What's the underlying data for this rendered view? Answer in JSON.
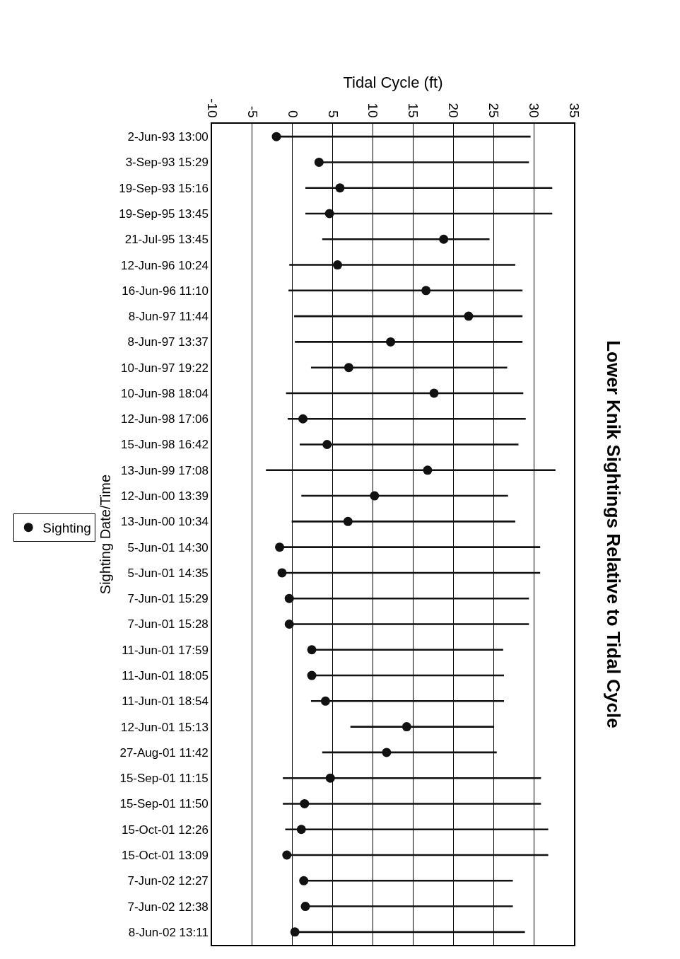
{
  "chart_data": {
    "type": "bar",
    "title": "Lower Knik Sightings Relative to Tidal Cycle",
    "xlabel": "Tidal Cycle (ft)",
    "ylabel": "Sighting Date/Time",
    "orientation": "horizontal",
    "categories": [
      "2-Jun-93 13:00",
      "3-Sep-93 15:29",
      "19-Sep-93 15:16",
      "19-Sep-95 13:45",
      "21-Jul-95 13:45",
      "12-Jun-96 10:24",
      "16-Jun-96 11:10",
      "8-Jun-97 11:44",
      "8-Jun-97 13:37",
      "10-Jun-97 19:22",
      "10-Jun-98 18:04",
      "12-Jun-98 17:06",
      "15-Jun-98 16:42",
      "13-Jun-99 17:08",
      "12-Jun-00 13:39",
      "13-Jun-00 10:34",
      "5-Jun-01 14:30",
      "5-Jun-01 14:35",
      "7-Jun-01 15:29",
      "7-Jun-01 15:28",
      "11-Jun-01 17:59",
      "11-Jun-01 18:05",
      "11-Jun-01 18:54",
      "12-Jun-01 15:13",
      "27-Aug-01 11:42",
      "15-Sep-01 11:15",
      "15-Sep-01 11:50",
      "15-Oct-01 12:26",
      "15-Oct-01 13:09",
      "7-Jun-02 12:27",
      "7-Jun-02 12:38",
      "8-Jun-02 13:11"
    ],
    "series": [
      {
        "color": "#111111",
        "base": [
          -2.0,
          3.3,
          1.6,
          1.6,
          3.7,
          -0.4,
          -0.5,
          0.2,
          0.3,
          2.3,
          -0.8,
          -0.6,
          0.9,
          -3.3,
          1.1,
          -0.1,
          -1.6,
          -1.3,
          -0.4,
          -0.4,
          2.4,
          2.4,
          2.3,
          7.2,
          3.7,
          -1.2,
          -1.2,
          -0.9,
          -0.7,
          1.4,
          1.6,
          0.3
        ],
        "values": [
          31.6,
          26.1,
          30.7,
          30.7,
          20.8,
          28.1,
          29.1,
          28.4,
          28.3,
          24.4,
          29.5,
          29.6,
          27.2,
          36.0,
          25.7,
          27.8,
          32.4,
          32.1,
          29.8,
          29.8,
          23.8,
          23.9,
          24.0,
          17.8,
          21.7,
          32.1,
          32.1,
          32.7,
          32.5,
          26.0,
          25.8,
          28.6
        ]
      },
      {
        "type": "scatter",
        "name": "Sighting",
        "color": "#111111",
        "marker": "circle",
        "values": [
          -2.0,
          3.3,
          5.9,
          4.6,
          18.8,
          5.6,
          16.6,
          21.9,
          12.2,
          7.0,
          17.6,
          1.3,
          4.3,
          16.8,
          10.2,
          6.9,
          -1.6,
          -1.3,
          -0.4,
          -0.4,
          2.4,
          2.4,
          4.1,
          14.2,
          11.7,
          4.7,
          1.5,
          1.1,
          -0.7,
          1.4,
          1.6,
          0.3
        ]
      }
    ],
    "xlim": [
      -10,
      35
    ],
    "xticks": [
      -10,
      -5,
      0,
      5,
      10,
      15,
      20,
      25,
      30,
      35
    ],
    "grid": "x",
    "legend": "left"
  }
}
